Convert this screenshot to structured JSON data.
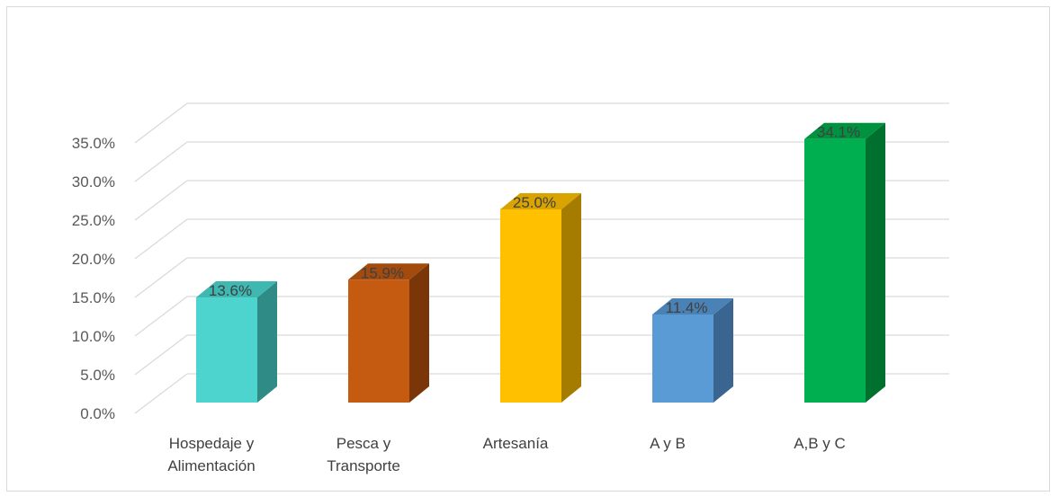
{
  "chart_data": {
    "type": "bar",
    "categories": [
      [
        "Hospedaje y",
        "Alimentación"
      ],
      [
        "Pesca y",
        "Transporte"
      ],
      [
        "Artesanía"
      ],
      [
        "A y B"
      ],
      [
        "A,B y C"
      ]
    ],
    "values": [
      13.6,
      15.9,
      25.0,
      11.4,
      34.1
    ],
    "data_labels": [
      "13.6%",
      "15.9%",
      "25.0%",
      "11.4%",
      "34.1%"
    ],
    "colors": [
      "#4dd4ce",
      "#c55a11",
      "#ffc000",
      "#5b9bd5",
      "#00b050"
    ],
    "side_colors": [
      "#2e8b85",
      "#7a3608",
      "#a67c00",
      "#3a6590",
      "#00702e"
    ],
    "top_colors": [
      "#3fb8b2",
      "#a34a0e",
      "#d9a300",
      "#4a82b5",
      "#00923f"
    ],
    "yticks": [
      "0.0%",
      "5.0%",
      "10.0%",
      "15.0%",
      "20.0%",
      "25.0%",
      "30.0%",
      "35.0%"
    ],
    "ylim": [
      0,
      35
    ],
    "title": "",
    "xlabel": "",
    "ylabel": "",
    "grid": true,
    "legend": "none",
    "three_d": true
  }
}
